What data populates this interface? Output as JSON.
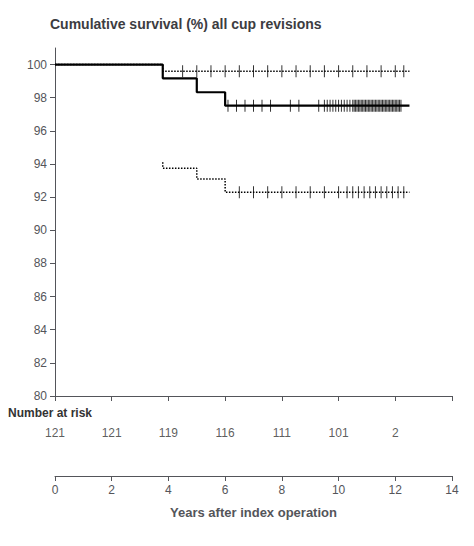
{
  "chart_data": {
    "type": "step",
    "title": "Cumulative survival (%) all cup revisions",
    "xlabel": "Years after index operation",
    "xlim": [
      0,
      14
    ],
    "ylim": [
      80,
      101.0
    ],
    "xticks": [
      0,
      2,
      4,
      6,
      8,
      10,
      12,
      14
    ],
    "yticks": [
      80,
      82,
      84,
      86,
      88,
      90,
      92,
      94,
      96,
      98,
      100
    ],
    "grid": false,
    "color": "#000000",
    "series": [
      {
        "type": "step",
        "line_style": "solid",
        "x": [
          0,
          3.8,
          3.8,
          5.0,
          5.0,
          6.0,
          6.0,
          12.5
        ],
        "values": [
          100,
          100,
          99.17,
          99.17,
          98.33,
          98.33,
          97.52,
          97.52
        ]
      },
      {
        "type": "step",
        "line_style": "dotted",
        "x": [
          0,
          3.8,
          3.8,
          5.0,
          5.0,
          12.5
        ],
        "values": [
          100,
          100,
          99.59,
          99.59,
          99.59,
          99.59
        ]
      },
      {
        "type": "step",
        "line_style": "dotted",
        "x": [
          3.8,
          3.8,
          5.0,
          5.0,
          6.0,
          6.0,
          12.5
        ],
        "values": [
          94.1,
          93.75,
          93.75,
          93.1,
          93.1,
          92.3,
          92.3
        ]
      },
      {
        "type": "censor",
        "x": [
          6.1,
          6.4,
          6.7,
          7.0,
          7.3,
          7.6,
          8.3,
          8.6,
          9.3,
          9.5,
          9.6,
          9.7,
          9.8,
          9.9,
          10.0,
          10.1,
          10.2,
          10.3,
          10.4,
          10.5,
          10.55,
          10.6,
          10.65,
          10.7,
          10.75,
          10.8,
          10.85,
          10.9,
          10.95,
          11.0,
          11.05,
          11.1,
          11.15,
          11.2,
          11.25,
          11.3,
          11.35,
          11.4,
          11.45,
          11.5,
          11.55,
          11.6,
          11.65,
          11.7,
          11.75,
          11.8,
          11.85,
          11.9,
          11.95,
          12.0,
          12.05,
          12.1,
          12.15,
          12.2
        ],
        "y": 97.52
      },
      {
        "type": "censor",
        "x": [
          4.5,
          5.0,
          5.5,
          6.0,
          6.5,
          7.0,
          7.5,
          8.0,
          8.5,
          9.0,
          9.5,
          10.0,
          10.5,
          11.0,
          11.5,
          12.0,
          12.3
        ],
        "y": 99.59
      },
      {
        "type": "censor",
        "x": [
          6.5,
          7.0,
          7.5,
          8.0,
          8.5,
          9.0,
          9.5,
          10.0,
          10.3,
          10.5,
          10.7,
          10.9,
          11.1,
          11.3,
          11.5,
          11.7,
          11.9,
          12.1,
          12.3
        ],
        "y": 92.3
      }
    ],
    "risk_table": {
      "label": "Number at risk",
      "x": [
        0,
        2,
        4,
        6,
        8,
        10,
        12
      ],
      "numbers": [
        121,
        121,
        119,
        116,
        111,
        101,
        2
      ]
    }
  }
}
